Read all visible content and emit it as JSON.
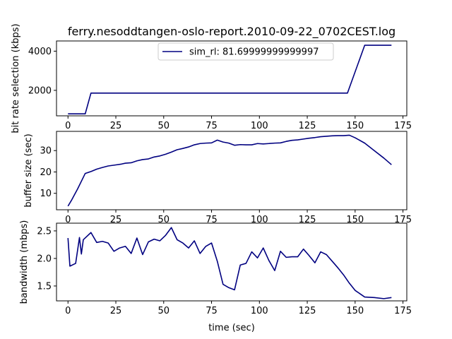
{
  "chart_data": [
    {
      "type": "line",
      "title": "ferry.nesoddtangen-oslo-report.2010-09-22_0702CEST.log",
      "xlabel": "",
      "ylabel": "bit rate selection (kbps)",
      "xlim": [
        -6,
        177
      ],
      "ylim": [
        700,
        4520
      ],
      "xticks": [
        0,
        25,
        50,
        75,
        100,
        125,
        150,
        175
      ],
      "yticks": [
        2000,
        4000
      ],
      "legend": {
        "position": "top-center"
      },
      "color": "#000080",
      "series": [
        {
          "name": "sim_rl: 81.69999999999997",
          "x": [
            0,
            9,
            12,
            146,
            155,
            169
          ],
          "y": [
            800,
            800,
            1860,
            1860,
            4300,
            4300
          ]
        }
      ]
    },
    {
      "type": "line",
      "xlabel": "",
      "ylabel": "buffer size (sec)",
      "xlim": [
        -6,
        177
      ],
      "ylim": [
        2.3,
        39
      ],
      "xticks": [
        0,
        25,
        50,
        75,
        100,
        125,
        150,
        175
      ],
      "yticks": [
        10,
        20,
        30
      ],
      "color": "#000080",
      "series": [
        {
          "x": [
            0,
            2,
            5,
            9,
            12,
            15,
            18,
            21,
            25,
            28,
            30,
            33,
            36,
            39,
            42,
            45,
            48,
            51,
            54,
            57,
            60,
            63,
            66,
            69,
            72,
            75,
            78,
            81,
            84,
            87,
            90,
            93,
            96,
            99,
            102,
            105,
            108,
            111,
            114,
            117,
            120,
            123,
            126,
            129,
            132,
            135,
            138,
            141,
            144,
            147,
            150,
            155,
            160,
            165,
            169
          ],
          "y": [
            4,
            7,
            12,
            19.3,
            20.2,
            21.3,
            22.1,
            22.8,
            23.3,
            23.7,
            24.1,
            24.3,
            25.2,
            25.8,
            26.1,
            27.0,
            27.5,
            28.3,
            29.3,
            30.4,
            31.0,
            31.7,
            32.7,
            33.3,
            33.5,
            33.6,
            34.9,
            34.0,
            33.5,
            32.5,
            32.8,
            32.7,
            32.7,
            33.3,
            33.1,
            33.3,
            33.5,
            33.6,
            34.3,
            34.8,
            35.0,
            35.4,
            35.8,
            36.1,
            36.5,
            36.7,
            36.9,
            37.0,
            37.0,
            37.2,
            36.0,
            33.5,
            30.0,
            26.5,
            23.4
          ]
        }
      ]
    },
    {
      "type": "line",
      "xlabel": "time (sec)",
      "ylabel": "bandwidth (mbps)",
      "xlim": [
        -6,
        177
      ],
      "ylim": [
        1.23,
        2.64
      ],
      "xticks": [
        0,
        25,
        50,
        75,
        100,
        125,
        150,
        175
      ],
      "yticks": [
        1.5,
        2.0,
        2.5
      ],
      "color": "#000080",
      "series": [
        {
          "x": [
            0,
            1,
            4,
            6,
            7,
            8,
            12,
            15,
            18,
            21,
            24,
            27,
            30,
            33,
            36,
            39,
            42,
            45,
            48,
            51,
            54,
            57,
            60,
            63,
            66,
            69,
            72,
            75,
            78,
            81,
            84,
            87,
            90,
            93,
            96,
            99,
            102,
            105,
            108,
            111,
            114,
            117,
            120,
            123,
            126,
            129,
            132,
            135,
            138,
            141,
            144,
            147,
            150,
            155,
            160,
            165,
            169
          ],
          "y": [
            2.37,
            1.86,
            1.91,
            2.38,
            2.08,
            2.34,
            2.47,
            2.29,
            2.31,
            2.28,
            2.13,
            2.19,
            2.22,
            2.09,
            2.37,
            2.07,
            2.3,
            2.35,
            2.32,
            2.42,
            2.56,
            2.34,
            2.28,
            2.19,
            2.32,
            2.09,
            2.22,
            2.28,
            1.95,
            1.53,
            1.47,
            1.43,
            1.88,
            1.91,
            2.12,
            2.01,
            2.19,
            1.96,
            1.78,
            2.13,
            2.02,
            2.03,
            2.03,
            2.17,
            2.05,
            1.92,
            2.12,
            2.07,
            1.95,
            1.83,
            1.7,
            1.55,
            1.42,
            1.3,
            1.29,
            1.27,
            1.29
          ]
        }
      ]
    }
  ]
}
